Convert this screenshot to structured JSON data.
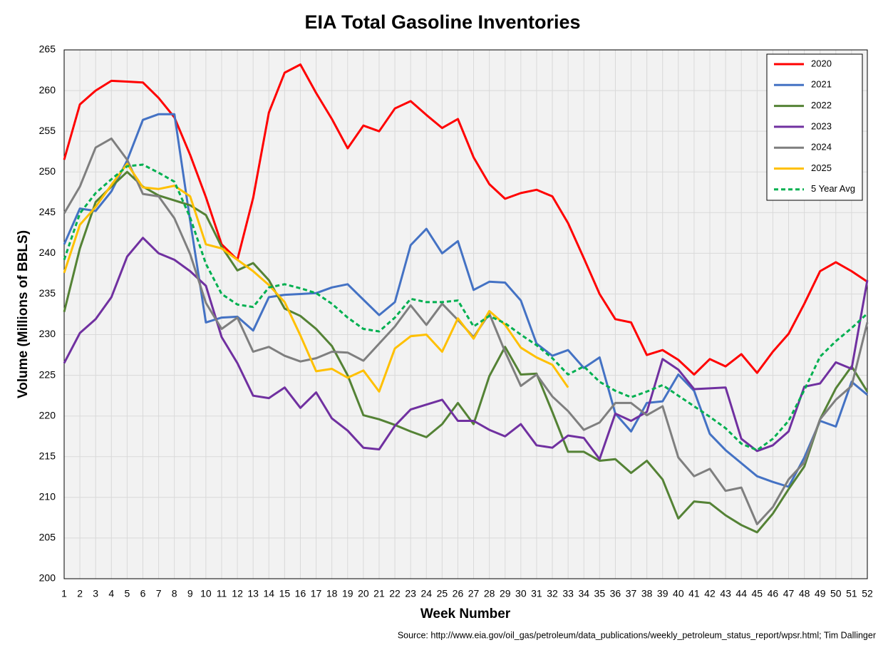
{
  "chart_data": {
    "type": "line",
    "title": "EIA Total Gasoline Inventories",
    "x_label": "Week Number",
    "y_label": "Volume (Millions of BBLS)",
    "source": "Source: http://www.eia.gov/oil_gas/petroleum/data_publications/weekly_petroleum_status_report/wpsr.html; Tim Dallinger",
    "x": [
      1,
      2,
      3,
      4,
      5,
      6,
      7,
      8,
      9,
      10,
      11,
      12,
      13,
      14,
      15,
      16,
      17,
      18,
      19,
      20,
      21,
      22,
      23,
      24,
      25,
      26,
      27,
      28,
      29,
      30,
      31,
      32,
      33,
      34,
      35,
      36,
      37,
      38,
      39,
      40,
      41,
      42,
      43,
      44,
      45,
      46,
      47,
      48,
      49,
      50,
      51,
      52
    ],
    "xlim": [
      1,
      52
    ],
    "xticks": [
      1,
      2,
      3,
      4,
      5,
      6,
      7,
      8,
      9,
      10,
      11,
      12,
      13,
      14,
      15,
      16,
      17,
      18,
      19,
      20,
      21,
      22,
      23,
      24,
      25,
      26,
      27,
      28,
      29,
      30,
      31,
      32,
      33,
      34,
      35,
      36,
      37,
      38,
      39,
      40,
      41,
      42,
      43,
      44,
      45,
      46,
      47,
      48,
      49,
      50,
      51,
      52
    ],
    "ylim": [
      200,
      265
    ],
    "yticks": [
      200,
      205,
      210,
      215,
      220,
      225,
      230,
      235,
      240,
      245,
      250,
      255,
      260,
      265
    ],
    "grid": true,
    "legend": "top-right",
    "series": [
      {
        "name": "2020",
        "color": "#ff0000",
        "style": "solid",
        "values": [
          251.5,
          258.3,
          260,
          261.2,
          261.1,
          261,
          259.1,
          256.7,
          252.1,
          246.9,
          241.1,
          239.2,
          246.8,
          257.3,
          262.2,
          263.2,
          259.7,
          256.5,
          252.9,
          255.7,
          255,
          257.8,
          258.7,
          257,
          255.4,
          256.5,
          251.8,
          248.5,
          246.7,
          247.4,
          247.8,
          247,
          243.7,
          239.4,
          235,
          231.9,
          231.5,
          227.5,
          228.1,
          226.9,
          225.1,
          227,
          226.1,
          227.6,
          225.3,
          227.9,
          230.1,
          233.8,
          237.8,
          238.9,
          237.8,
          236.5
        ]
      },
      {
        "name": "2021",
        "color": "#4472c4",
        "style": "solid",
        "values": [
          241.1,
          245.5,
          245.2,
          247.6,
          251.4,
          256.4,
          257.1,
          257.1,
          244,
          231.5,
          232.1,
          232.2,
          230.5,
          234.6,
          234.9,
          235,
          235.1,
          235.8,
          236.2,
          234.3,
          232.4,
          234,
          241,
          243,
          240,
          241.5,
          235.5,
          236.5,
          236.4,
          234.2,
          228.9,
          227.4,
          228.1,
          225.9,
          227.2,
          220.3,
          218.1,
          221.6,
          221.8,
          225.1,
          223.1,
          217.8,
          215.8,
          214.2,
          212.6,
          211.9,
          211.3,
          214.9,
          219.4,
          218.7,
          224.2,
          222.6
        ]
      },
      {
        "name": "2022",
        "color": "#548235",
        "style": "solid",
        "values": [
          232.8,
          240.6,
          246.3,
          248.2,
          250,
          248.2,
          247.1,
          246.5,
          245.9,
          244.7,
          240.8,
          237.9,
          238.8,
          236.7,
          233.2,
          232.3,
          230.7,
          228.6,
          225,
          220.1,
          219.6,
          218.9,
          218.1,
          217.4,
          219,
          221.6,
          219,
          224.9,
          228.5,
          225.1,
          225.2,
          220.5,
          215.6,
          215.6,
          214.5,
          214.7,
          213,
          214.5,
          212.2,
          207.4,
          209.5,
          209.3,
          207.8,
          206.6,
          205.7,
          208,
          211,
          213.8,
          219.6,
          223.4,
          226.1,
          223
        ]
      },
      {
        "name": "2023",
        "color": "#7030a0",
        "style": "solid",
        "values": [
          226.5,
          230.2,
          231.9,
          234.6,
          239.6,
          241.9,
          240,
          239.2,
          237.8,
          236,
          229.7,
          226.5,
          222.5,
          222.2,
          223.5,
          221,
          222.9,
          219.7,
          218.2,
          216.1,
          215.9,
          218.8,
          220.8,
          221.4,
          222,
          219.4,
          219.4,
          218.3,
          217.5,
          219,
          216.4,
          216.1,
          217.6,
          217.3,
          214.7,
          220.3,
          219.4,
          220.5,
          227,
          225.7,
          223.3,
          223.4,
          223.5,
          217.2,
          215.7,
          216.4,
          218.1,
          223.6,
          224,
          226.6,
          225.8,
          236.7
        ]
      },
      {
        "name": "2024",
        "color": "#7f7f7f",
        "style": "solid",
        "values": [
          244.9,
          248.2,
          253,
          254.1,
          251.5,
          247.3,
          247,
          244.3,
          239.9,
          233.9,
          230.7,
          232.1,
          227.9,
          228.5,
          227.4,
          226.7,
          227.1,
          227.9,
          227.8,
          226.8,
          228.9,
          231,
          233.6,
          231.2,
          233.8,
          231.8,
          229.7,
          232.6,
          227.9,
          223.7,
          225.1,
          222.4,
          220.6,
          218.3,
          219.2,
          221.6,
          221.6,
          220.1,
          221.2,
          214.9,
          212.6,
          213.5,
          210.8,
          211.2,
          206.7,
          208.8,
          212.2,
          214.3,
          219.6,
          222,
          223.7,
          231.5
        ]
      },
      {
        "name": "2025",
        "color": "#ffc000",
        "style": "solid",
        "values": [
          237.6,
          243.5,
          245.7,
          248.4,
          251,
          248.1,
          247.9,
          248.3,
          247,
          241.1,
          240.6,
          239.2,
          237.8,
          236.1,
          234,
          229.9,
          225.5,
          225.8,
          224.7,
          225.6,
          223,
          228.3,
          229.8,
          230,
          227.9,
          232,
          229.5,
          232.9,
          231.2,
          228.4,
          227.2,
          226.3,
          223.5,
          null,
          null,
          null,
          null,
          null,
          null,
          null,
          null,
          null,
          null,
          null,
          null,
          null,
          null,
          null,
          null,
          null,
          null,
          null
        ]
      },
      {
        "name": "5 Year Avg",
        "color": "#00b050",
        "style": "dashed",
        "values": [
          239.2,
          244.9,
          247.4,
          249.1,
          250.7,
          250.9,
          249.9,
          248.8,
          244.4,
          238.7,
          235,
          233.7,
          233.4,
          235.8,
          236.2,
          235.7,
          235.1,
          233.8,
          232.1,
          230.7,
          230.4,
          232.1,
          234.4,
          234,
          234,
          234.2,
          231,
          232.3,
          231.4,
          230,
          228.7,
          227.1,
          225.1,
          226.1,
          224.2,
          223.1,
          222.3,
          223,
          223.8,
          222.5,
          221.2,
          219.9,
          218.5,
          216.6,
          215.8,
          217.2,
          219.4,
          223.2,
          227.3,
          229.2,
          230.8,
          232.6
        ]
      }
    ]
  }
}
